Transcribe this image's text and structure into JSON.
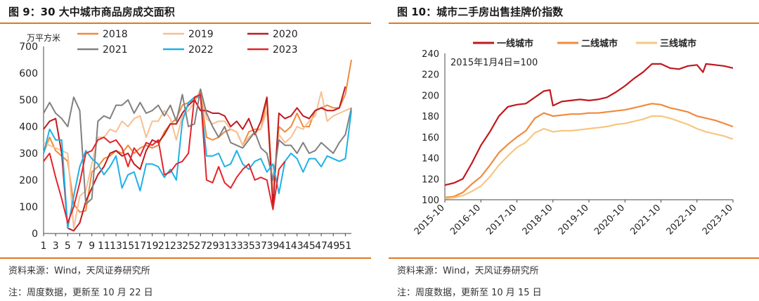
{
  "figure_left": {
    "title": "图 9：30 大中城市商品房成交面积",
    "source": "资料来源：Wind，天风证券研究所",
    "note": "注：周度数据，更新至 10 月 22 日"
  },
  "figure_right": {
    "title": "图 10：城市二手房出售挂牌价指数",
    "source": "资料来源：Wind，天风证券研究所",
    "note": "注：周度数据，更新至 10 月 15 日"
  },
  "chart_data": [
    {
      "type": "line",
      "ylabel": "万平方米",
      "ylim": [
        0,
        700
      ],
      "yticks": [
        0,
        100,
        200,
        300,
        400,
        500,
        600,
        700
      ],
      "x": [
        1,
        2,
        3,
        4,
        5,
        6,
        7,
        8,
        9,
        10,
        11,
        12,
        13,
        14,
        15,
        16,
        17,
        18,
        19,
        20,
        21,
        22,
        23,
        24,
        25,
        26,
        27,
        28,
        29,
        30,
        31,
        32,
        33,
        34,
        35,
        36,
        37,
        38,
        39,
        40,
        41,
        42,
        43,
        44,
        45,
        46,
        47,
        48,
        49,
        50,
        51,
        52
      ],
      "xtick_labels": [
        "1",
        "3",
        "5",
        "7",
        "9",
        "11",
        "13",
        "15",
        "17",
        "19",
        "21",
        "23",
        "25",
        "27",
        "29",
        "31",
        "33",
        "35",
        "37",
        "39",
        "41",
        "43",
        "45",
        "47",
        "49",
        "51"
      ],
      "grid": false,
      "legend_position": "top",
      "series": [
        {
          "name": "2018",
          "color": "#f08a3c",
          "values": [
            300,
            360,
            310,
            290,
            270,
            110,
            80,
            85,
            230,
            250,
            280,
            290,
            310,
            300,
            330,
            300,
            320,
            330,
            320,
            330,
            380,
            410,
            430,
            480,
            490,
            500,
            530,
            360,
            350,
            360,
            380,
            390,
            380,
            330,
            380,
            390,
            390,
            500,
            160,
            400,
            380,
            400,
            450,
            400,
            400,
            460,
            470,
            480,
            470,
            470,
            520,
            650
          ]
        },
        {
          "name": "2019",
          "color": "#f7bf92",
          "values": [
            340,
            330,
            320,
            310,
            300,
            20,
            140,
            160,
            260,
            360,
            360,
            390,
            380,
            420,
            400,
            430,
            440,
            360,
            420,
            420,
            460,
            430,
            350,
            440,
            460,
            490,
            540,
            430,
            410,
            420,
            420,
            390,
            380,
            330,
            360,
            380,
            390,
            460,
            160,
            370,
            340,
            360,
            400,
            390,
            420,
            440,
            530,
            420,
            440,
            450,
            460,
            470
          ]
        },
        {
          "name": "2020",
          "color": "#c0181e",
          "values": [
            390,
            420,
            430,
            300,
            20,
            10,
            40,
            120,
            170,
            220,
            250,
            300,
            310,
            290,
            300,
            260,
            240,
            310,
            350,
            340,
            370,
            410,
            410,
            450,
            480,
            500,
            460,
            460,
            450,
            450,
            440,
            400,
            420,
            390,
            430,
            370,
            420,
            510,
            100,
            450,
            430,
            440,
            470,
            440,
            430,
            460,
            470,
            460,
            460,
            470,
            550,
            null
          ]
        },
        {
          "name": "2021",
          "color": "#808080",
          "values": [
            450,
            490,
            450,
            430,
            400,
            510,
            460,
            110,
            130,
            420,
            440,
            430,
            480,
            480,
            500,
            450,
            490,
            450,
            460,
            480,
            440,
            480,
            420,
            520,
            400,
            410,
            540,
            450,
            400,
            360,
            400,
            340,
            330,
            320,
            350,
            380,
            320,
            300,
            200,
            350,
            330,
            330,
            300,
            340,
            300,
            310,
            340,
            320,
            300,
            340,
            370,
            470
          ]
        },
        {
          "name": "2022",
          "color": "#1fb1e6",
          "values": [
            300,
            390,
            350,
            350,
            20,
            140,
            250,
            310,
            280,
            260,
            220,
            250,
            290,
            170,
            220,
            230,
            160,
            260,
            260,
            250,
            210,
            240,
            200,
            420,
            490,
            510,
            510,
            290,
            290,
            300,
            250,
            260,
            310,
            260,
            240,
            270,
            280,
            230,
            260,
            150,
            270,
            300,
            280,
            230,
            280,
            280,
            250,
            290,
            280,
            270,
            280,
            460
          ]
        },
        {
          "name": "2023",
          "color": "#e3242b",
          "values": [
            270,
            300,
            210,
            130,
            40,
            100,
            190,
            300,
            310,
            350,
            360,
            340,
            350,
            320,
            250,
            320,
            290,
            340,
            330,
            350,
            220,
            230,
            260,
            270,
            300,
            510,
            520,
            200,
            190,
            250,
            190,
            170,
            210,
            240,
            260,
            200,
            210,
            200,
            90,
            240,
            270,
            null,
            null,
            null,
            null,
            null,
            null,
            null,
            null,
            null,
            null,
            null
          ]
        }
      ]
    },
    {
      "type": "line",
      "annotation": "2015年1月4日=100",
      "ylim": [
        100,
        240
      ],
      "yticks": [
        100,
        120,
        140,
        160,
        180,
        200,
        220,
        240
      ],
      "xtick_labels": [
        "2015-10",
        "2016-10",
        "2017-10",
        "2018-10",
        "2019-10",
        "2020-10",
        "2021-10",
        "2022-10",
        "2023-10"
      ],
      "x_start": "2015-10",
      "x_end": "2023-10",
      "grid": false,
      "legend_position": "top",
      "series": [
        {
          "name": "一线城市",
          "color": "#c0181e",
          "x": [
            "2015-10",
            "2016-01",
            "2016-04",
            "2016-07",
            "2016-10",
            "2017-01",
            "2017-04",
            "2017-07",
            "2017-10",
            "2018-01",
            "2018-04",
            "2018-07",
            "2018-09",
            "2018-10",
            "2019-01",
            "2019-04",
            "2019-07",
            "2019-10",
            "2020-01",
            "2020-04",
            "2020-07",
            "2020-10",
            "2021-01",
            "2021-04",
            "2021-07",
            "2021-10",
            "2022-01",
            "2022-04",
            "2022-07",
            "2022-10",
            "2022-12",
            "2023-01",
            "2023-04",
            "2023-07",
            "2023-10"
          ],
          "values": [
            114,
            116,
            120,
            135,
            152,
            165,
            180,
            189,
            191,
            192,
            198,
            204,
            205,
            190,
            194,
            195,
            196,
            195,
            196,
            198,
            203,
            209,
            216,
            222,
            230,
            230,
            226,
            225,
            228,
            229,
            222,
            230,
            229,
            228,
            226
          ]
        },
        {
          "name": "二线城市",
          "color": "#f08a3c",
          "x": [
            "2015-10",
            "2016-01",
            "2016-04",
            "2016-07",
            "2016-10",
            "2017-01",
            "2017-04",
            "2017-07",
            "2017-10",
            "2018-01",
            "2018-04",
            "2018-07",
            "2018-10",
            "2019-01",
            "2019-04",
            "2019-07",
            "2019-10",
            "2020-01",
            "2020-04",
            "2020-07",
            "2020-10",
            "2021-01",
            "2021-04",
            "2021-07",
            "2021-10",
            "2022-01",
            "2022-04",
            "2022-07",
            "2022-10",
            "2023-01",
            "2023-04",
            "2023-07",
            "2023-10"
          ],
          "values": [
            102,
            103,
            107,
            115,
            122,
            133,
            145,
            153,
            160,
            166,
            178,
            183,
            180,
            181,
            182,
            182,
            183,
            183,
            184,
            185,
            186,
            188,
            190,
            192,
            191,
            188,
            186,
            184,
            180,
            178,
            176,
            173,
            170
          ]
        },
        {
          "name": "三线城市",
          "color": "#f7c680",
          "x": [
            "2015-10",
            "2016-01",
            "2016-04",
            "2016-07",
            "2016-10",
            "2017-01",
            "2017-04",
            "2017-07",
            "2017-10",
            "2018-01",
            "2018-04",
            "2018-07",
            "2018-10",
            "2019-01",
            "2019-04",
            "2019-07",
            "2019-10",
            "2020-01",
            "2020-04",
            "2020-07",
            "2020-10",
            "2021-01",
            "2021-04",
            "2021-07",
            "2021-10",
            "2022-01",
            "2022-04",
            "2022-07",
            "2022-10",
            "2023-01",
            "2023-04",
            "2023-07",
            "2023-10"
          ],
          "values": [
            101,
            102,
            104,
            108,
            113,
            122,
            133,
            142,
            150,
            155,
            164,
            168,
            165,
            166,
            166,
            167,
            168,
            169,
            170,
            172,
            173,
            175,
            177,
            180,
            180,
            178,
            175,
            172,
            168,
            165,
            163,
            161,
            158
          ]
        }
      ]
    }
  ]
}
